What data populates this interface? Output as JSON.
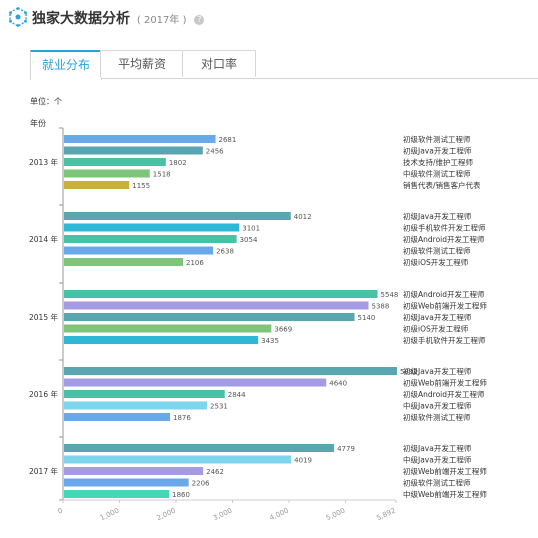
{
  "header": {
    "title": "独家大数据分析",
    "year_note": "( 2017年 )",
    "help_glyph": "?"
  },
  "tabs": [
    {
      "label": "就业分布",
      "active": true
    },
    {
      "label": "平均薪资",
      "active": false
    },
    {
      "label": "对口率",
      "active": false
    }
  ],
  "unit_label": "单位：个",
  "y_axis_title": "年份",
  "colors": {
    "accent": "#29a3d8",
    "bar_palette": [
      "#6aa9e9",
      "#5aa6b0",
      "#48c2a5",
      "#7dc579",
      "#c9b13c",
      "#2eb8d6",
      "#a59ae6",
      "#7ed6ee",
      "#44d7b6"
    ]
  },
  "chart_data": {
    "type": "bar",
    "orientation": "horizontal",
    "x_ticks": [
      "0",
      "1,000",
      "2,000",
      "3,000",
      "4,000",
      "5,000",
      "5,892"
    ],
    "xlim": [
      0,
      5892
    ],
    "groups": [
      {
        "year": "2013 年",
        "bars": [
          {
            "label": "初级软件测试工程师",
            "value": 2681,
            "color": "#6aa9e9"
          },
          {
            "label": "初级Java开发工程师",
            "value": 2456,
            "color": "#5aa6b0"
          },
          {
            "label": "技术支持/维护工程师",
            "value": 1802,
            "color": "#48c2a5"
          },
          {
            "label": "中级软件测试工程师",
            "value": 1518,
            "color": "#7dc579"
          },
          {
            "label": "销售代表/销售客户代表",
            "value": 1155,
            "color": "#c9b13c"
          }
        ]
      },
      {
        "year": "2014 年",
        "bars": [
          {
            "label": "初级Java开发工程师",
            "value": 4012,
            "color": "#5aa6b0"
          },
          {
            "label": "初级手机软件开发工程师",
            "value": 3101,
            "color": "#2eb8d6"
          },
          {
            "label": "初级Android开发工程师",
            "value": 3054,
            "color": "#48c2a5"
          },
          {
            "label": "初级软件测试工程师",
            "value": 2638,
            "color": "#6aa9e9"
          },
          {
            "label": "初级iOS开发工程师",
            "value": 2106,
            "color": "#7dc579"
          }
        ]
      },
      {
        "year": "2015 年",
        "bars": [
          {
            "label": "初级Android开发工程师",
            "value": 5548,
            "color": "#48c2a5"
          },
          {
            "label": "初级Web前端开发工程师",
            "value": 5388,
            "color": "#a59ae6"
          },
          {
            "label": "初级Java开发工程师",
            "value": 5140,
            "color": "#5aa6b0"
          },
          {
            "label": "初级iOS开发工程师",
            "value": 3669,
            "color": "#7dc579"
          },
          {
            "label": "初级手机软件开发工程师",
            "value": 3435,
            "color": "#2eb8d6"
          }
        ]
      },
      {
        "year": "2016 年",
        "bars": [
          {
            "label": "初级Java开发工程师",
            "value": 5892,
            "color": "#5aa6b0"
          },
          {
            "label": "初级Web前端开发工程师",
            "value": 4640,
            "color": "#a59ae6"
          },
          {
            "label": "初级Android开发工程师",
            "value": 2844,
            "color": "#48c2a5"
          },
          {
            "label": "中级Java开发工程师",
            "value": 2531,
            "color": "#7ed6ee"
          },
          {
            "label": "初级软件测试工程师",
            "value": 1876,
            "color": "#6aa9e9"
          }
        ]
      },
      {
        "year": "2017 年",
        "bars": [
          {
            "label": "初级Java开发工程师",
            "value": 4779,
            "color": "#5aa6b0"
          },
          {
            "label": "中级Java开发工程师",
            "value": 4019,
            "color": "#7ed6ee"
          },
          {
            "label": "初级Web前端开发工程师",
            "value": 2462,
            "color": "#a59ae6"
          },
          {
            "label": "初级软件测试工程师",
            "value": 2206,
            "color": "#6aa9e9"
          },
          {
            "label": "中级Web前端开发工程师",
            "value": 1860,
            "color": "#44d7b6"
          }
        ]
      }
    ]
  }
}
